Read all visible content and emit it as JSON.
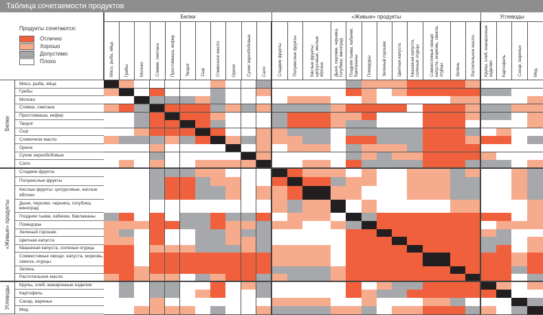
{
  "title": "Таблица  сочетаемости продуктов",
  "legend": {
    "title": "Продукты сочетаются:",
    "items": [
      {
        "code": "E",
        "label": "Отлично",
        "color": "#f0603c"
      },
      {
        "code": "G",
        "label": "Хорошо",
        "color": "#f7ab8d"
      },
      {
        "code": "A",
        "label": "Допустимо",
        "color": "#a6a8ab"
      },
      {
        "code": "B",
        "label": "Плохо",
        "color": "#ffffff"
      }
    ],
    "diagonal_color": "#231f20"
  },
  "groups": [
    {
      "label": "Белки"
    },
    {
      "label": "«Живые» продукты"
    },
    {
      "label": "Углеводы"
    }
  ],
  "products": [
    "Мясо, рыба, яйца",
    "Грибы",
    "Молоко",
    "Сливки, сметана",
    "Простокваша, кефир",
    "Творог",
    "Сыр",
    "Сливочное масло",
    "Орехи",
    "Сухие зернобобовые",
    "Сало",
    "Сладкие фрукты",
    "Полукислые фрукты",
    "Кислые фрукты: цитрусовые, кислые яблони",
    "Дыня, персики, черника, голубика, виноград",
    "Поздняя тыква, кабачки, баклажаны",
    "Помидоры",
    "Зеленый горошек",
    "Цветная капуста",
    "Квашеная капуста, соленые огурцы",
    "Совместимые овощи: капуста, морковь, свекла, огурцы",
    "Зелень",
    "Растительное масло",
    "Крупы, хлеб, макаронные изделия",
    "Картофель",
    "Сахар, варенье",
    "Мед"
  ],
  "chart_data": {
    "type": "heatmap",
    "rows_and_columns": "products",
    "value_codes": {
      "E": "Отлично",
      "G": "Хорошо",
      "A": "Допустимо",
      "B": "Плохо",
      "X": "—"
    },
    "matrix": [
      "XGBBBBBGBBABBBBAGGGEEEGBBBB",
      "GXBEBBBABBGBBBBEGBGEEEEAABB",
      "BBXAAAGABBBBGGBBGBBBBGGBBBG",
      "GEAXEEEAGAGAAAGEEEEBEEGAAGG",
      "BBAEXEEGBBBAEEGGEBBBEEGAABG",
      "BBAEEXEABBBAEEGAABBBEEBBBBG",
      "BBGEEEXEBBGGAABAAAAAEEABGBB",
      "GAAAGAEXGAGGGABEEAAAEEGEEBA",
      "BBBGBBBBXBGBGGBAGGGAEEEBBBB",
      "BBBABBBBBXGBBBBAGAGGEEEGBBB",
      "BGBGBBGGGGXBBGBEAAAAEEAAABG",
      "BBBAAAGGBBBXEGGBGBBGGAGBBGA",
      "BBBAEEAGGBBEXEAGGBBGGAABBGA",
      "BBBAEEAAGBGGEXGGBBBGGAABBGA",
      "BBBBBBBBBBBGAGXBGBBBBGGBBBG",
      "AEBEBAAEAAEBGGBXAEEEEEEEEBG",
      "GGGEEAAEGGAGGBGAXEEEEEEBGGG",
      "GABEBBAAGAABBBBEEXEEEEEGABB",
      "GGBEBBAAGGABBBBEEEXEEEEAABG",
      "EEBGGGAAAGAGGGBEEEEXEEEAEBG",
      "EEBEEEEEEEEGGGBEEEEEXEEEEGE",
      "EEGEEEEEEEEAAAGEEEEEEXEEEAE",
      "GEGGGBAGEEAGAAGEEEEEEEXEEBA",
      "BABAABBEBGABBBBEBGAAEEEXGBG",
      "BABAABGEBBABBBBEGAAEEEEEXBB",
      "BBBGBBBBBBBGGGBBGBBBGABBBXA",
      "BBGGGGBABBGAAAGGABGGEEAGBAX"
    ]
  }
}
